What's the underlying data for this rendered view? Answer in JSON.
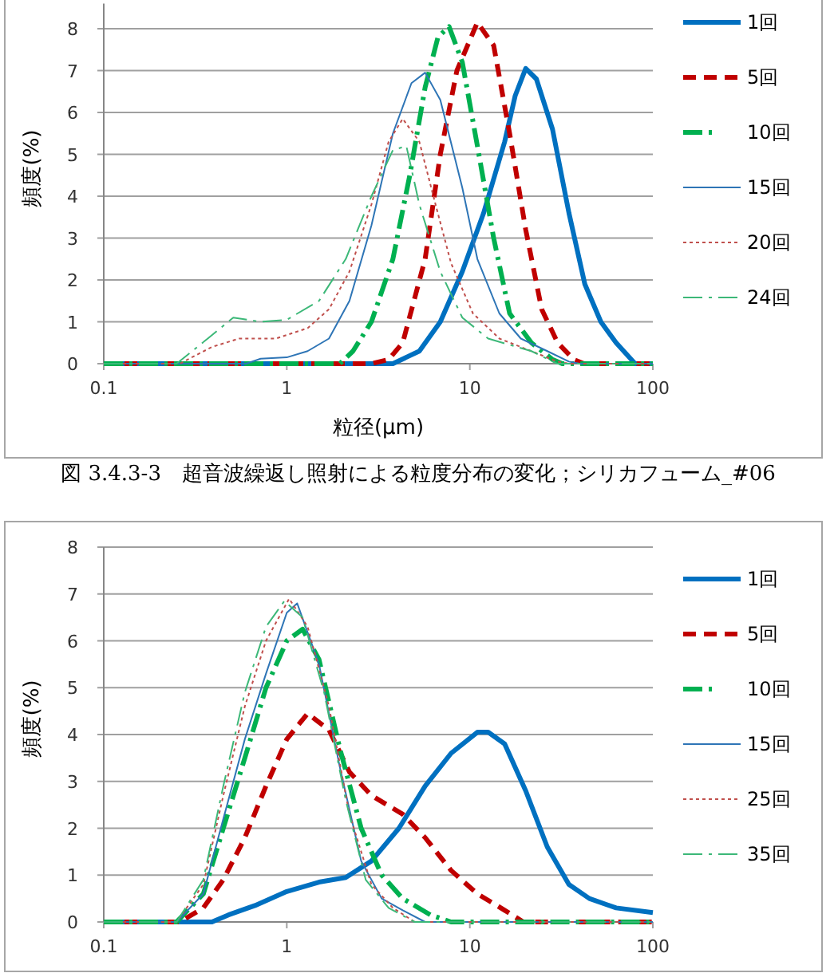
{
  "chart_data": [
    {
      "type": "line",
      "xlabel": "粒径(μm)",
      "ylabel": "頻度(%)",
      "log": "x",
      "grid": "y",
      "legend": "right",
      "xlim": [
        0.1,
        100
      ],
      "xticks": [
        0.1,
        1,
        10,
        100
      ],
      "ylim": [
        0,
        8.6
      ],
      "yticks": [
        0,
        1,
        2,
        3,
        4,
        5,
        6,
        7,
        8
      ],
      "annotations": [
        "図 3.4.3-3　超音波繰返し照射による粒度分布の変化；シリカフューム_#06"
      ],
      "series": [
        {
          "name": "1回",
          "color": "#0070c0",
          "line_style": "solid",
          "x": [
            0.1,
            1,
            3.8,
            5.3,
            6.9,
            9.1,
            11.9,
            15.5,
            17.7,
            20.2,
            23.1,
            28.3,
            34.8,
            42.5,
            52,
            63,
            80,
            100
          ],
          "values": [
            0,
            0,
            0,
            0.3,
            1.0,
            2.2,
            3.6,
            5.3,
            6.4,
            7.05,
            6.8,
            5.6,
            3.6,
            1.9,
            1.0,
            0.5,
            0,
            0
          ]
        },
        {
          "name": "5回",
          "color": "#c00000",
          "line_style": "dashed",
          "x": [
            0.1,
            1,
            2.9,
            3.6,
            4.3,
            5.7,
            6.9,
            8.5,
            11,
            13.5,
            16.5,
            20.2,
            24.7,
            30.2,
            37,
            42,
            100
          ],
          "values": [
            0,
            0,
            0,
            0.1,
            0.5,
            2.5,
            5,
            7,
            8.15,
            7.6,
            5.5,
            3.2,
            1.3,
            0.5,
            0.1,
            0,
            0
          ]
        },
        {
          "name": "10回",
          "color": "#00b050",
          "line_style": "dashdot",
          "x": [
            0.1,
            1,
            1.95,
            2.3,
            2.9,
            3.8,
            4.7,
            5.7,
            6.7,
            7.7,
            9.1,
            11,
            13.5,
            16.5,
            21.7,
            28.3,
            32,
            100
          ],
          "values": [
            0,
            0,
            0,
            0.3,
            1.0,
            2.5,
            4.5,
            6.6,
            7.8,
            8.05,
            7.2,
            5.2,
            3.0,
            1.2,
            0.5,
            0.1,
            0,
            0
          ]
        },
        {
          "name": "15回",
          "color": "#2e75b6",
          "line_style": "solid",
          "x": [
            0.1,
            0.6,
            0.72,
            1,
            1.3,
            1.7,
            2.2,
            2.9,
            3.8,
            4.8,
            5.7,
            6.9,
            9.1,
            11,
            14.5,
            19,
            26.5,
            34.8,
            40,
            100
          ],
          "values": [
            0,
            0,
            0.12,
            0.15,
            0.3,
            0.6,
            1.5,
            3.3,
            5.5,
            6.7,
            6.95,
            6.3,
            4.2,
            2.5,
            1.2,
            0.6,
            0.3,
            0.05,
            0,
            0
          ]
        },
        {
          "name": "20回",
          "color": "#c0504d",
          "line_style": "dotted",
          "x": [
            0.1,
            0.26,
            0.39,
            0.55,
            0.87,
            1.3,
            1.7,
            2.2,
            2.9,
            3.6,
            4.3,
            5.3,
            6.5,
            7.9,
            10.4,
            14.5,
            21.7,
            30,
            35,
            100
          ],
          "values": [
            0,
            0,
            0.4,
            0.6,
            0.6,
            0.85,
            1.3,
            2.2,
            3.8,
            5.3,
            5.85,
            5.3,
            3.8,
            2.4,
            1.2,
            0.6,
            0.3,
            0.05,
            0,
            0
          ]
        },
        {
          "name": "24回",
          "color": "#3cb878",
          "line_style": "dashdot",
          "x": [
            0.1,
            0.25,
            0.37,
            0.51,
            0.72,
            1,
            1.5,
            2.1,
            2.9,
            3.8,
            4.5,
            5.3,
            6.9,
            9.1,
            12.6,
            21.7,
            30,
            100
          ],
          "values": [
            0,
            0,
            0.6,
            1.1,
            1.0,
            1.05,
            1.5,
            2.5,
            4.0,
            5.1,
            5.2,
            3.8,
            2.2,
            1.1,
            0.6,
            0.3,
            0,
            0
          ]
        }
      ]
    },
    {
      "type": "line",
      "ylabel": "頻度(%)",
      "log": "x",
      "grid": "y",
      "legend": "right",
      "xlim": [
        0.1,
        100
      ],
      "xticks": [
        0.1,
        1,
        10,
        100
      ],
      "ylim": [
        0,
        8
      ],
      "yticks": [
        0,
        1,
        2,
        3,
        4,
        5,
        6,
        7,
        8
      ],
      "series": [
        {
          "name": "1回",
          "color": "#0070c0",
          "line_style": "solid",
          "x": [
            0.1,
            0.39,
            0.48,
            0.67,
            1,
            1.5,
            2.1,
            2.9,
            4.1,
            5.7,
            7.9,
            11,
            12.6,
            15.5,
            20.2,
            26.5,
            34.8,
            45,
            63,
            100
          ],
          "values": [
            0,
            0,
            0.15,
            0.35,
            0.65,
            0.85,
            0.95,
            1.3,
            2.0,
            2.9,
            3.6,
            4.05,
            4.05,
            3.8,
            2.8,
            1.6,
            0.8,
            0.5,
            0.3,
            0.2
          ]
        },
        {
          "name": "5回",
          "color": "#c00000",
          "line_style": "dashed",
          "x": [
            0.1,
            0.26,
            0.35,
            0.45,
            0.59,
            0.77,
            1,
            1.3,
            1.7,
            2.2,
            2.9,
            4.3,
            5.7,
            7.9,
            11,
            15.5,
            19.6,
            100
          ],
          "values": [
            0,
            0,
            0.3,
            0.9,
            1.8,
            2.9,
            3.9,
            4.45,
            4.1,
            3.2,
            2.7,
            2.3,
            1.8,
            1.1,
            0.6,
            0.25,
            0,
            0
          ]
        },
        {
          "name": "10回",
          "color": "#00b050",
          "line_style": "dashdot",
          "x": [
            0.1,
            0.25,
            0.35,
            0.45,
            0.59,
            0.77,
            1,
            1.22,
            1.5,
            1.95,
            2.55,
            3.3,
            4.3,
            6.1,
            7.9,
            100
          ],
          "values": [
            0,
            0,
            0.6,
            2.0,
            3.5,
            5.0,
            6.0,
            6.25,
            5.6,
            3.7,
            2.0,
            1.0,
            0.5,
            0.15,
            0,
            0
          ]
        },
        {
          "name": "15回",
          "color": "#2e75b6",
          "line_style": "solid",
          "x": [
            0.1,
            0.25,
            0.35,
            0.45,
            0.59,
            0.77,
            1,
            1.14,
            1.5,
            1.95,
            2.55,
            3.3,
            4.3,
            5.7,
            100
          ],
          "values": [
            0,
            0,
            0.6,
            2.2,
            3.9,
            5.3,
            6.6,
            6.8,
            5.5,
            3.3,
            1.3,
            0.5,
            0.25,
            0,
            0
          ]
        },
        {
          "name": "25回",
          "color": "#c0504d",
          "line_style": "dotted",
          "x": [
            0.1,
            0.25,
            0.35,
            0.45,
            0.59,
            0.77,
            1.03,
            1.3,
            1.7,
            2.2,
            2.9,
            3.8,
            5,
            100
          ],
          "values": [
            0,
            0,
            0.8,
            2.7,
            4.6,
            6.0,
            6.9,
            6.3,
            4.6,
            2.3,
            0.8,
            0.3,
            0,
            0
          ]
        },
        {
          "name": "35回",
          "color": "#3cb878",
          "line_style": "dashdot",
          "x": [
            0.1,
            0.25,
            0.35,
            0.45,
            0.59,
            0.77,
            0.97,
            1.22,
            1.6,
            2.1,
            2.7,
            3.6,
            5,
            100
          ],
          "values": [
            0,
            0,
            0.9,
            2.9,
            4.9,
            6.3,
            6.85,
            6.5,
            4.9,
            2.6,
            0.9,
            0.3,
            0,
            0
          ]
        }
      ]
    }
  ]
}
